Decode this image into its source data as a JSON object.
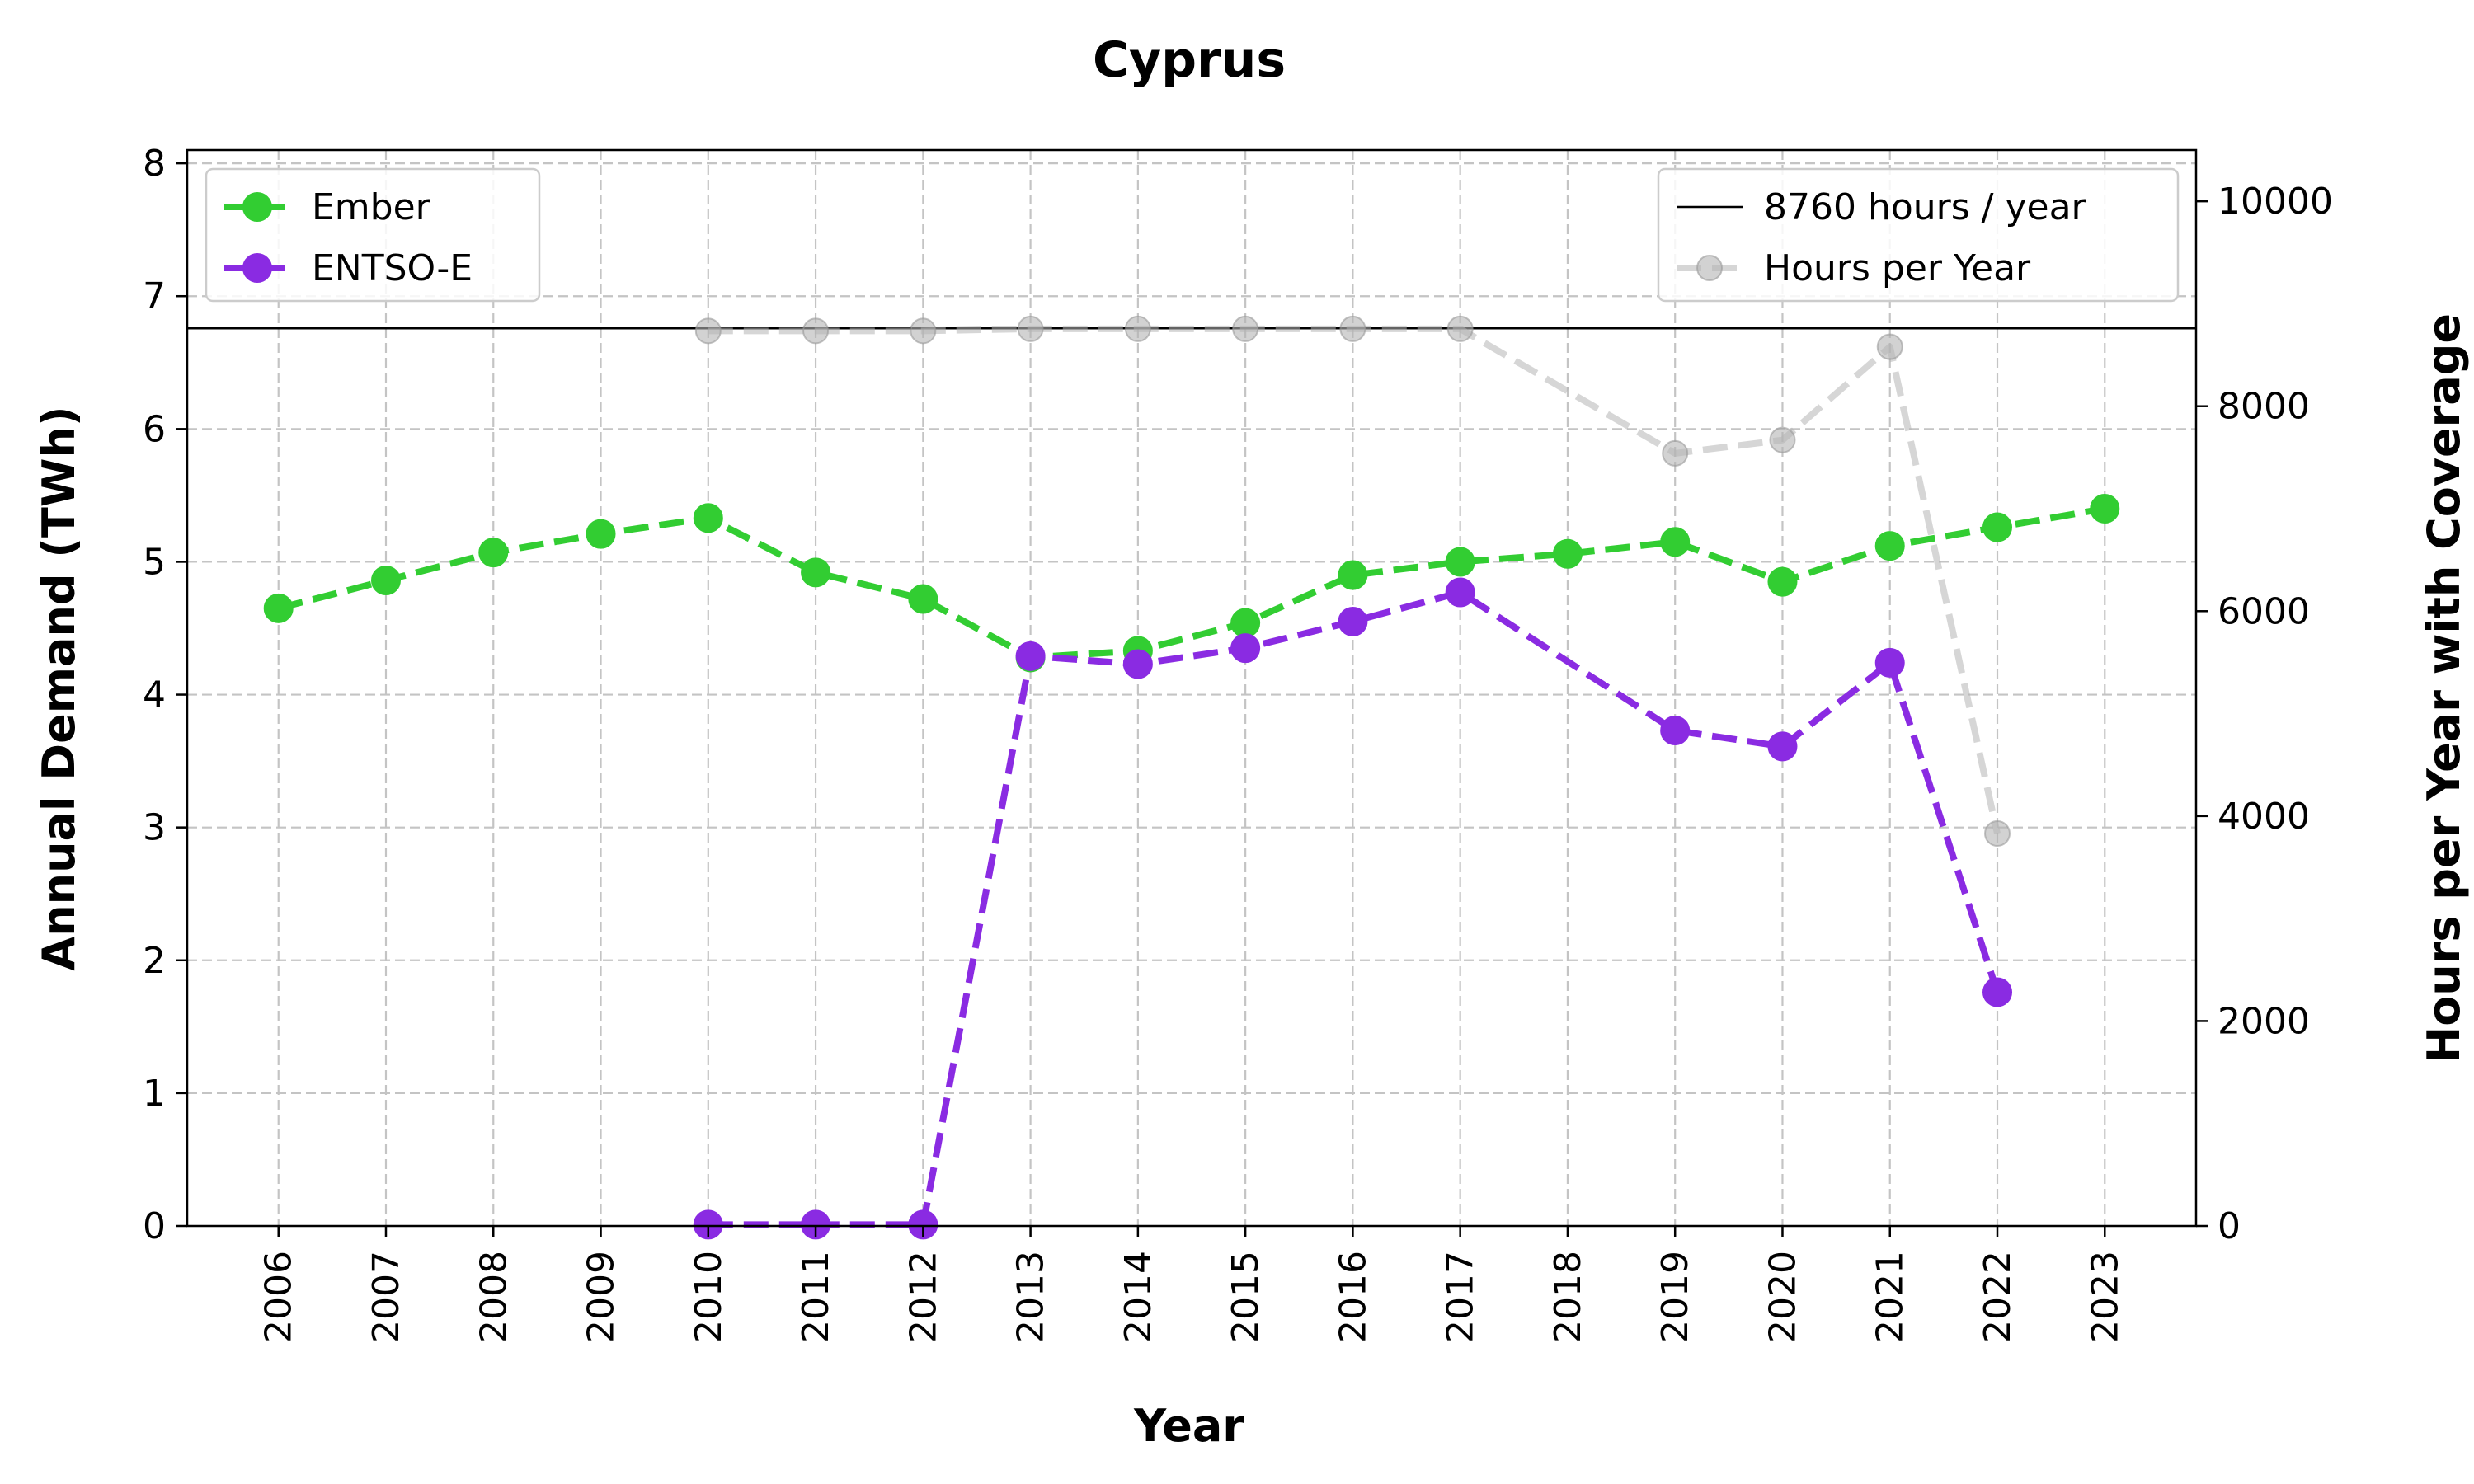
{
  "chart_data": {
    "type": "line",
    "title": "Cyprus",
    "xlabel": "Year",
    "ylabel": "Annual Demand (TWh)",
    "ylabel_right": "Hours per Year with Coverage",
    "categories": [
      "2006",
      "2007",
      "2008",
      "2009",
      "2010",
      "2011",
      "2012",
      "2013",
      "2014",
      "2015",
      "2016",
      "2017",
      "2018",
      "2019",
      "2020",
      "2021",
      "2022",
      "2023"
    ],
    "xlim": [
      2005.15,
      2023.85
    ],
    "ylim": [
      0,
      8.1
    ],
    "ylim_right": [
      0,
      10500
    ],
    "yticks": [
      0,
      1,
      2,
      3,
      4,
      5,
      6,
      7,
      8
    ],
    "yticks_right": [
      0,
      2000,
      4000,
      6000,
      8000,
      10000
    ],
    "grid": true,
    "series": [
      {
        "name": "Ember",
        "axis": "left",
        "color": "#32cd32",
        "style": "dashed-marker",
        "x": [
          2006,
          2007,
          2008,
          2009,
          2010,
          2011,
          2012,
          2013,
          2014,
          2015,
          2016,
          2017,
          2018,
          2019,
          2020,
          2021,
          2022,
          2023
        ],
        "values": [
          4.65,
          4.86,
          5.07,
          5.21,
          5.33,
          4.92,
          4.72,
          4.28,
          4.33,
          4.54,
          4.9,
          5.0,
          5.06,
          5.15,
          4.85,
          5.12,
          5.26,
          5.4
        ]
      },
      {
        "name": "ENTSO-E",
        "axis": "left",
        "color": "#8a2be2",
        "style": "dashed-marker",
        "x": [
          2010,
          2011,
          2012,
          2013,
          2014,
          2015,
          2016,
          2017,
          2019,
          2020,
          2021,
          2022
        ],
        "values": [
          0.01,
          0.01,
          0.01,
          4.29,
          4.23,
          4.35,
          4.55,
          4.77,
          3.73,
          3.61,
          4.24,
          1.76
        ]
      },
      {
        "name": "8760 hours / year",
        "axis": "right",
        "color": "#000000",
        "style": "hline",
        "value": 8760
      },
      {
        "name": "Hours per Year",
        "axis": "right",
        "color": "#b4b4b4",
        "style": "dashed-marker-faded",
        "x": [
          2010,
          2011,
          2012,
          2013,
          2014,
          2015,
          2016,
          2017,
          2019,
          2020,
          2021,
          2022
        ],
        "values": [
          8735,
          8735,
          8735,
          8755,
          8755,
          8755,
          8755,
          8755,
          7540,
          7670,
          8580,
          3830
        ]
      }
    ],
    "legend_left": {
      "placement": "upper-left",
      "entries": [
        "Ember",
        "ENTSO-E"
      ]
    },
    "legend_right": {
      "placement": "upper-right",
      "entries": [
        "8760 hours / year",
        "Hours per Year"
      ]
    }
  }
}
